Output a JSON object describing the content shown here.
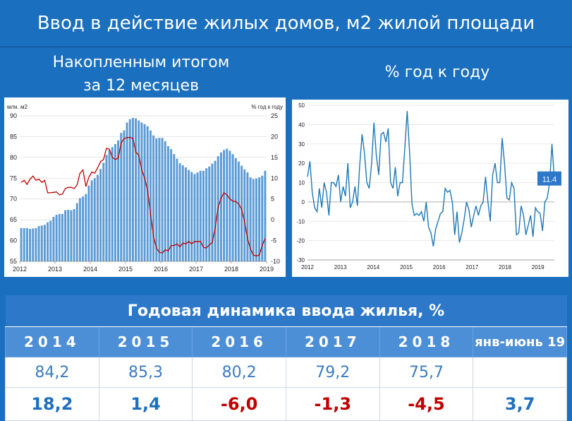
{
  "header": {
    "title": "Ввод в действие жилых домов, м2 жилой площади",
    "left_subtitle_line1": "Накопленным итогом",
    "left_subtitle_line2": "за 12 месяцев",
    "right_subtitle": "% год к году"
  },
  "chart_data": [
    {
      "type": "bar",
      "ylabel": "млн. м2",
      "y2label": "% год к году",
      "ylim": [
        55,
        90
      ],
      "y2lim": [
        -10,
        25
      ],
      "yticks": [
        55,
        60,
        65,
        70,
        75,
        80,
        85,
        90
      ],
      "y2ticks": [
        -10,
        -5,
        0,
        5,
        10,
        15,
        20,
        25
      ],
      "x_tick_labels": [
        "2012",
        "2013",
        "2014",
        "2015",
        "2016",
        "2017",
        "2018",
        "2019"
      ],
      "x_start": 2012.0,
      "colors": {
        "bars": "#5b9bd5",
        "line": "#c00000"
      },
      "series": [
        {
          "values": [
            63.0,
            63.0,
            63.0,
            62.8,
            62.9,
            63.0,
            63.5,
            63.6,
            63.8,
            64.4,
            64.8,
            65.7,
            66.2,
            66.4,
            66.4,
            67.3,
            67.4,
            67.3,
            67.6,
            69.0,
            70.2,
            70.6,
            71.2,
            73.2,
            74.5,
            75.0,
            75.8,
            77.2,
            78.7,
            80.6,
            81.8,
            82.5,
            83.2,
            84.1,
            85.9,
            86.5,
            88.4,
            89.2,
            89.5,
            89.4,
            88.9,
            88.4,
            88.0,
            87.5,
            86.5,
            85.3,
            84.6,
            84.7,
            84.7,
            83.9,
            82.7,
            82.0,
            80.8,
            79.7,
            78.6,
            78.1,
            77.6,
            77.0,
            76.5,
            76.0,
            76.4,
            76.8,
            76.8,
            77.4,
            77.8,
            78.5,
            79.2,
            80.3,
            81.2,
            81.8,
            82.1,
            81.6,
            80.8,
            79.8,
            79.0,
            78.0,
            77.1,
            76.4,
            75.2,
            74.8,
            74.9,
            75.2,
            75.6,
            76.8
          ]
        },
        {
          "values": [
            9.0,
            9.5,
            8.5,
            9.8,
            10.5,
            9.5,
            9.8,
            9.0,
            9.5,
            6.5,
            6.5,
            6.6,
            6.7,
            6.0,
            6.2,
            7.5,
            7.8,
            7.8,
            7.5,
            8.4,
            11.2,
            12.0,
            8.0,
            10.2,
            11.5,
            11.2,
            12.5,
            14.0,
            14.5,
            17.2,
            17.0,
            15.0,
            14.5,
            14.8,
            18.5,
            19.5,
            19.8,
            19.8,
            19.6,
            16.3,
            15.5,
            12.0,
            10.0,
            7.0,
            1.5,
            -4.0,
            -6.8,
            -7.8,
            -8.0,
            -7.2,
            -7.5,
            -6.2,
            -6.2,
            -5.8,
            -6.5,
            -5.6,
            -5.8,
            -5.2,
            -5.8,
            -5.2,
            -5.3,
            -5.2,
            -6.6,
            -6.8,
            -6.0,
            -5.5,
            -2.0,
            3.0,
            5.2,
            6.5,
            6.0,
            5.0,
            4.5,
            4.4,
            3.8,
            2.5,
            -0.5,
            -4.5,
            -7.0,
            -8.5,
            -8.7,
            -8.5,
            -6.2,
            -4.5
          ]
        }
      ]
    },
    {
      "type": "line",
      "ylim": [
        -30,
        50
      ],
      "yticks": [
        -30,
        -20,
        -10,
        0,
        10,
        20,
        30,
        40,
        50
      ],
      "x_tick_labels": [
        "2012",
        "2013",
        "2014",
        "2015",
        "2016",
        "2017",
        "2018",
        "2019"
      ],
      "x_start": 2012.0,
      "colors": {
        "line": "#1f77b4",
        "label_bg": "#2d78c8"
      },
      "last_value_label": "11.4",
      "series": [
        {
          "values": [
            13,
            21,
            5,
            -3,
            -5,
            7,
            -3,
            10,
            5,
            -7,
            10,
            10,
            8,
            14,
            0,
            8,
            3,
            20,
            -3,
            0,
            8,
            -2,
            19,
            35,
            25,
            10,
            7,
            20,
            41,
            24,
            14,
            35,
            36,
            31,
            38,
            10,
            7,
            18,
            3,
            10,
            10,
            28,
            47,
            26,
            -1,
            -7,
            -6,
            -7,
            -5,
            -10,
            0,
            -13,
            -16,
            -23,
            -14,
            -10,
            -6,
            -5,
            7,
            5,
            6,
            0,
            -17,
            -5,
            -21,
            -16,
            -9,
            0,
            -4,
            -13,
            -7,
            -2,
            -7,
            -2,
            0,
            13,
            0,
            -10,
            14,
            20,
            10,
            10,
            33,
            20,
            2,
            1,
            10,
            7,
            -17,
            -16,
            -2,
            -7,
            -17,
            -12,
            -7,
            -18,
            -3,
            -5,
            -6,
            -15,
            0,
            2,
            10,
            30,
            11.4
          ]
        }
      ]
    }
  ],
  "table": {
    "caption": "Годовая динамика ввода жилья, %",
    "years": [
      "2014",
      "2015",
      "2016",
      "2017",
      "2018",
      "янв-июнь 19"
    ],
    "volumes": [
      "84,2",
      "85,3",
      "80,2",
      "79,2",
      "75,7",
      ""
    ],
    "growth": [
      "18,2",
      "1,4",
      "-6,0",
      "-1,3",
      "-4,5",
      "3,7"
    ]
  }
}
